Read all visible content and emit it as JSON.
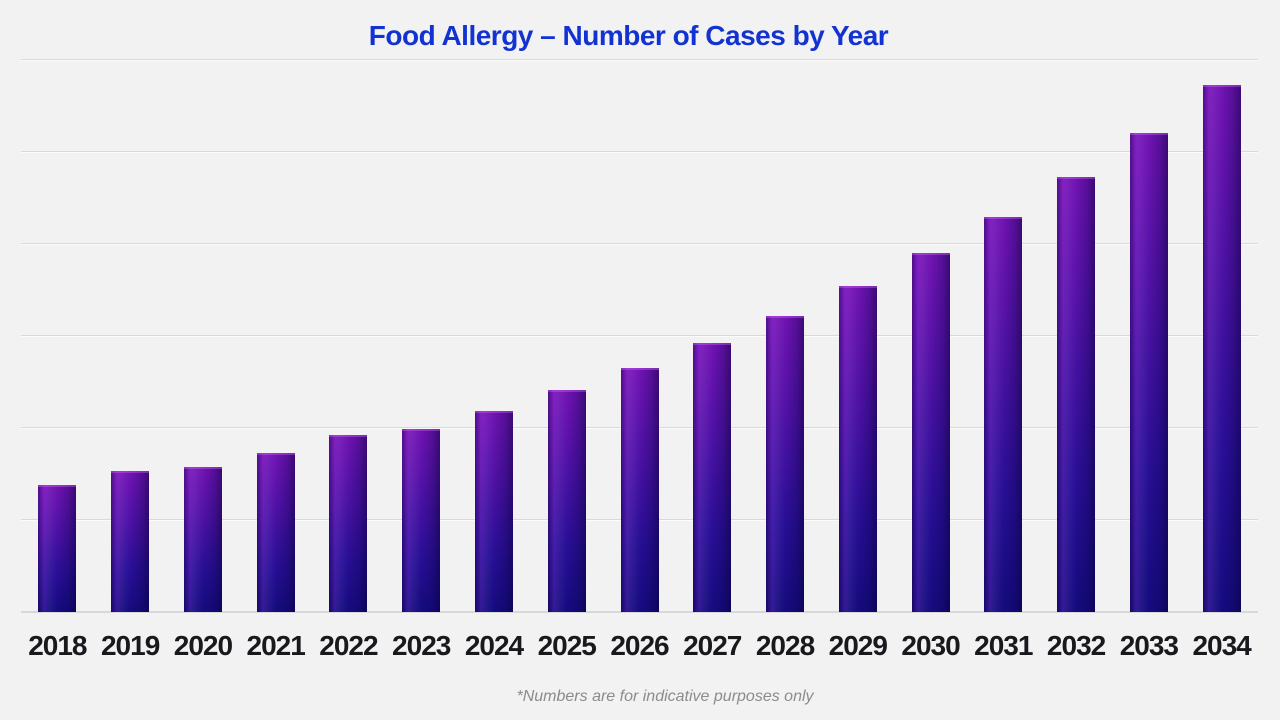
{
  "page": {
    "background_color": "#f2f2f3"
  },
  "chart_data": {
    "type": "bar",
    "title": "Food Allergy – Number of Cases by Year",
    "title_color": "#1233d2",
    "footnote": "*Numbers are for indicative purposes only",
    "categories": [
      "2018",
      "2019",
      "2020",
      "2021",
      "2022",
      "2023",
      "2024",
      "2025",
      "2026",
      "2027",
      "2028",
      "2029",
      "2030",
      "2031",
      "2032",
      "2033",
      "2034"
    ],
    "values": [
      138,
      153,
      158,
      173,
      192,
      199,
      218,
      241,
      265,
      292,
      322,
      354,
      390,
      429,
      473,
      521,
      573
    ],
    "xlabel": "",
    "ylabel": "",
    "ylim": [
      0,
      650
    ],
    "gridline_values": [
      100,
      200,
      300,
      400,
      500,
      600
    ],
    "y_axis_labels_visible": false,
    "grid": "horizontal",
    "legend": "none",
    "bar_gradient_top": "#7414b6",
    "bar_gradient_bottom": "#150b80",
    "bar_highlight": "#c85aff",
    "gridline_color": "#d9d9db",
    "xlabel_color": "#18181d"
  }
}
